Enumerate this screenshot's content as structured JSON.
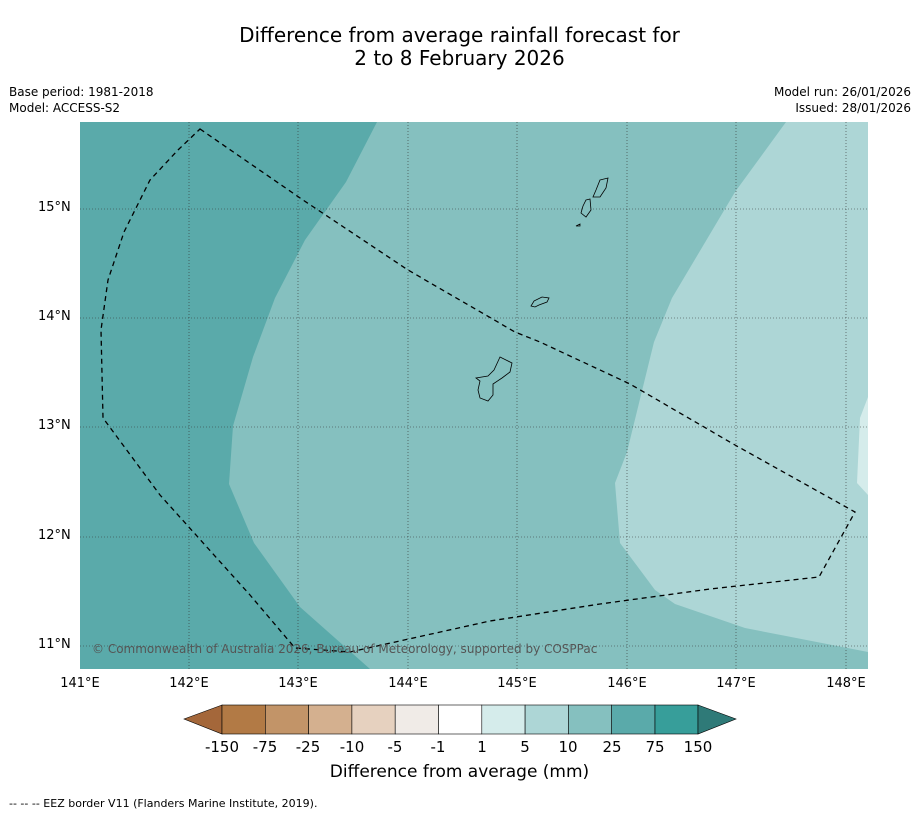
{
  "title": {
    "line1": "Difference from average rainfall forecast for",
    "line2": "2 to 8 February 2026"
  },
  "meta": {
    "base_period": "Base period: 1981-2018",
    "model": "Model: ACCESS-S2",
    "model_run": "Model run: 26/01/2026",
    "issued": "Issued: 28/01/2026"
  },
  "map": {
    "lon_labels": [
      "141°E",
      "142°E",
      "143°E",
      "144°E",
      "145°E",
      "146°E",
      "147°E",
      "148°E"
    ],
    "lat_labels": [
      "15°N",
      "14°N",
      "13°N",
      "12°N",
      "11°N"
    ],
    "copyright": "© Commonwealth of Australia 2026, Bureau of Meteorology, supported by COSPPac",
    "fill_colors": {
      "band_75_150": "#5aaaaa",
      "band_25_75": "#85c0bf",
      "band_10_25": "#add6d6",
      "band_5_10": "#d5eceb"
    }
  },
  "colorbar": {
    "tick_labels": [
      "-150",
      "-75",
      "-25",
      "-10",
      "-5",
      "-1",
      "1",
      "5",
      "10",
      "25",
      "75",
      "150"
    ],
    "colors": [
      "#a4673a",
      "#b27a45",
      "#c29468",
      "#d4b08f",
      "#e6d1bf",
      "#f0ebe7",
      "#ffffff",
      "#d5eceb",
      "#add6d6",
      "#85c0bf",
      "#5aaaaa",
      "#379e9a",
      "#2f7a78"
    ],
    "title": "Difference from average (mm)"
  },
  "legend": {
    "eez_note": "--  --  -- EEZ border V11 (Flanders Marine Institute, 2019)."
  }
}
